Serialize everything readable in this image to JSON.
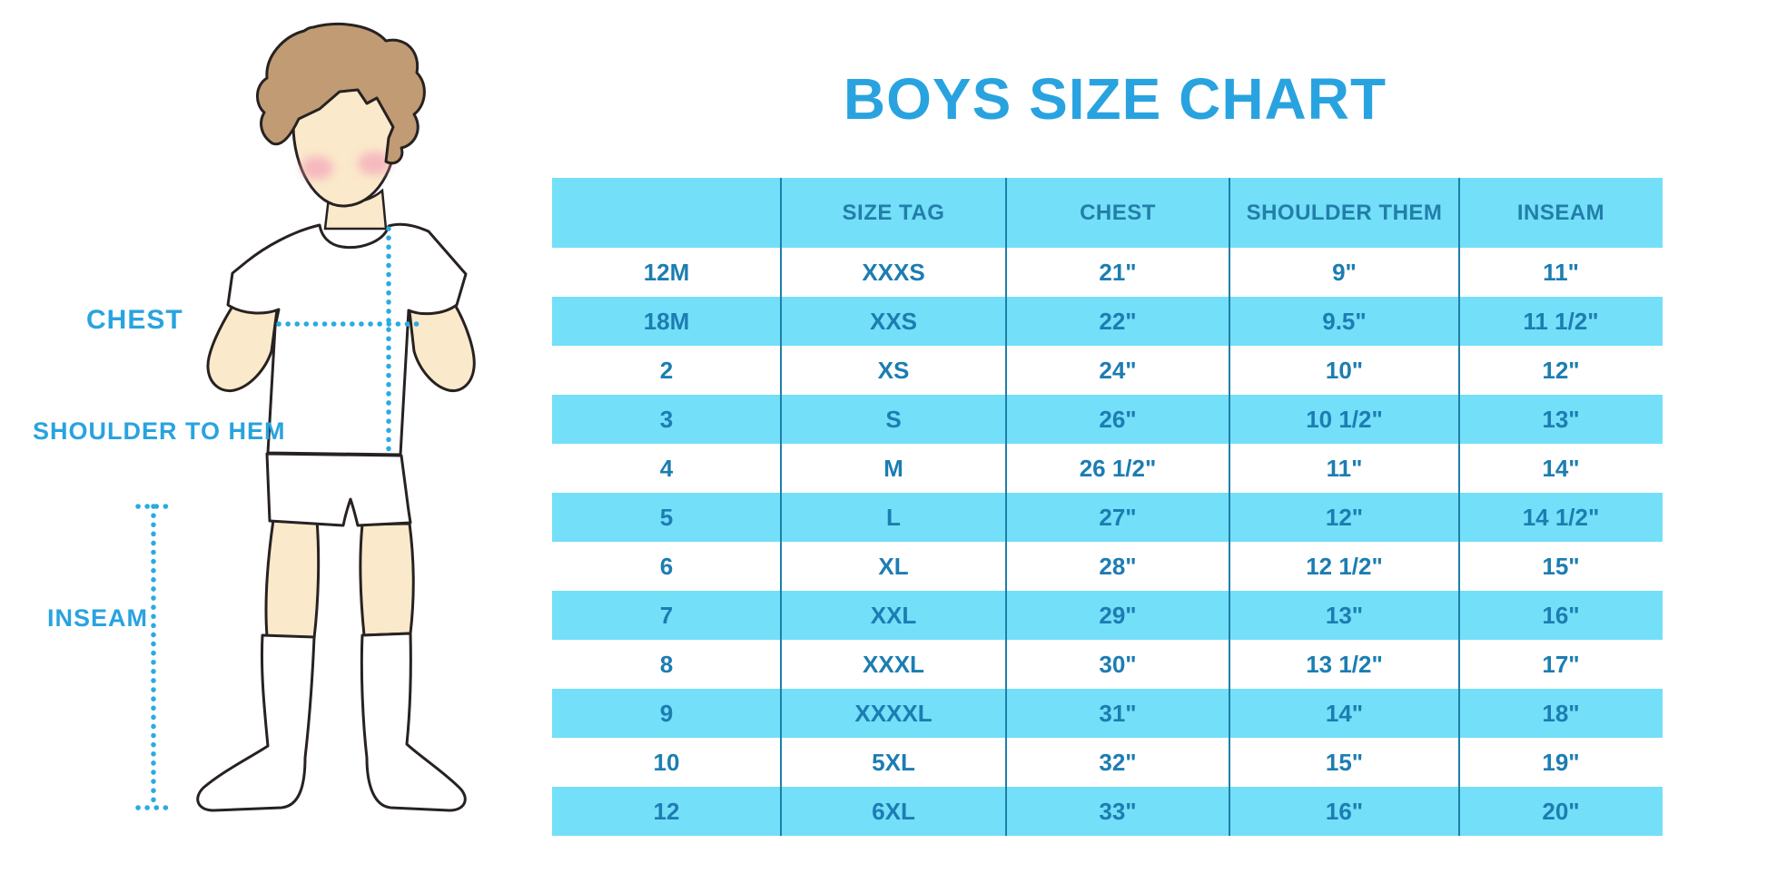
{
  "title": "BOYS SIZE CHART",
  "figure": {
    "description": "cartoon boy in white t-shirt, shorts and knee socks with dotted measurement guides",
    "labels": [
      {
        "id": "chest",
        "text": "CHEST"
      },
      {
        "id": "shoulder-to-hem",
        "text": "SHOULDER TO HEM"
      },
      {
        "id": "inseam",
        "text": "INSEAM"
      }
    ]
  },
  "chart_data": {
    "type": "table",
    "title": "BOYS SIZE CHART",
    "columns": [
      "",
      "SIZE TAG",
      "CHEST",
      "SHOULDER THEM",
      "INSEAM"
    ],
    "rows": [
      [
        "12M",
        "XXXS",
        "21\"",
        "9\"",
        "11\""
      ],
      [
        "18M",
        "XXS",
        "22\"",
        "9.5\"",
        "11 1/2\""
      ],
      [
        "2",
        "XS",
        "24\"",
        "10\"",
        "12\""
      ],
      [
        "3",
        "S",
        "26\"",
        "10 1/2\"",
        "13\""
      ],
      [
        "4",
        "M",
        "26 1/2\"",
        "11\"",
        "14\""
      ],
      [
        "5",
        "L",
        "27\"",
        "12\"",
        "14 1/2\""
      ],
      [
        "6",
        "XL",
        "28\"",
        "12 1/2\"",
        "15\""
      ],
      [
        "7",
        "XXL",
        "29\"",
        "13\"",
        "16\""
      ],
      [
        "8",
        "XXXL",
        "30\"",
        "13 1/2\"",
        "17\""
      ],
      [
        "9",
        "XXXXL",
        "31\"",
        "14\"",
        "18\""
      ],
      [
        "10",
        "5XL",
        "32\"",
        "15\"",
        "19\""
      ],
      [
        "12",
        "6XL",
        "33\"",
        "16\"",
        "20\""
      ]
    ]
  },
  "colors": {
    "accent_blue": "#29a3df",
    "row_blue": "#74dff8",
    "table_text": "#1c7db2",
    "header_text": "#217fa9",
    "divider": "#1e7fa8",
    "dotted_line": "#29abe2",
    "hair": "#c09b74",
    "skin": "#fbe9cb",
    "cheek": "#f2a0b8"
  }
}
